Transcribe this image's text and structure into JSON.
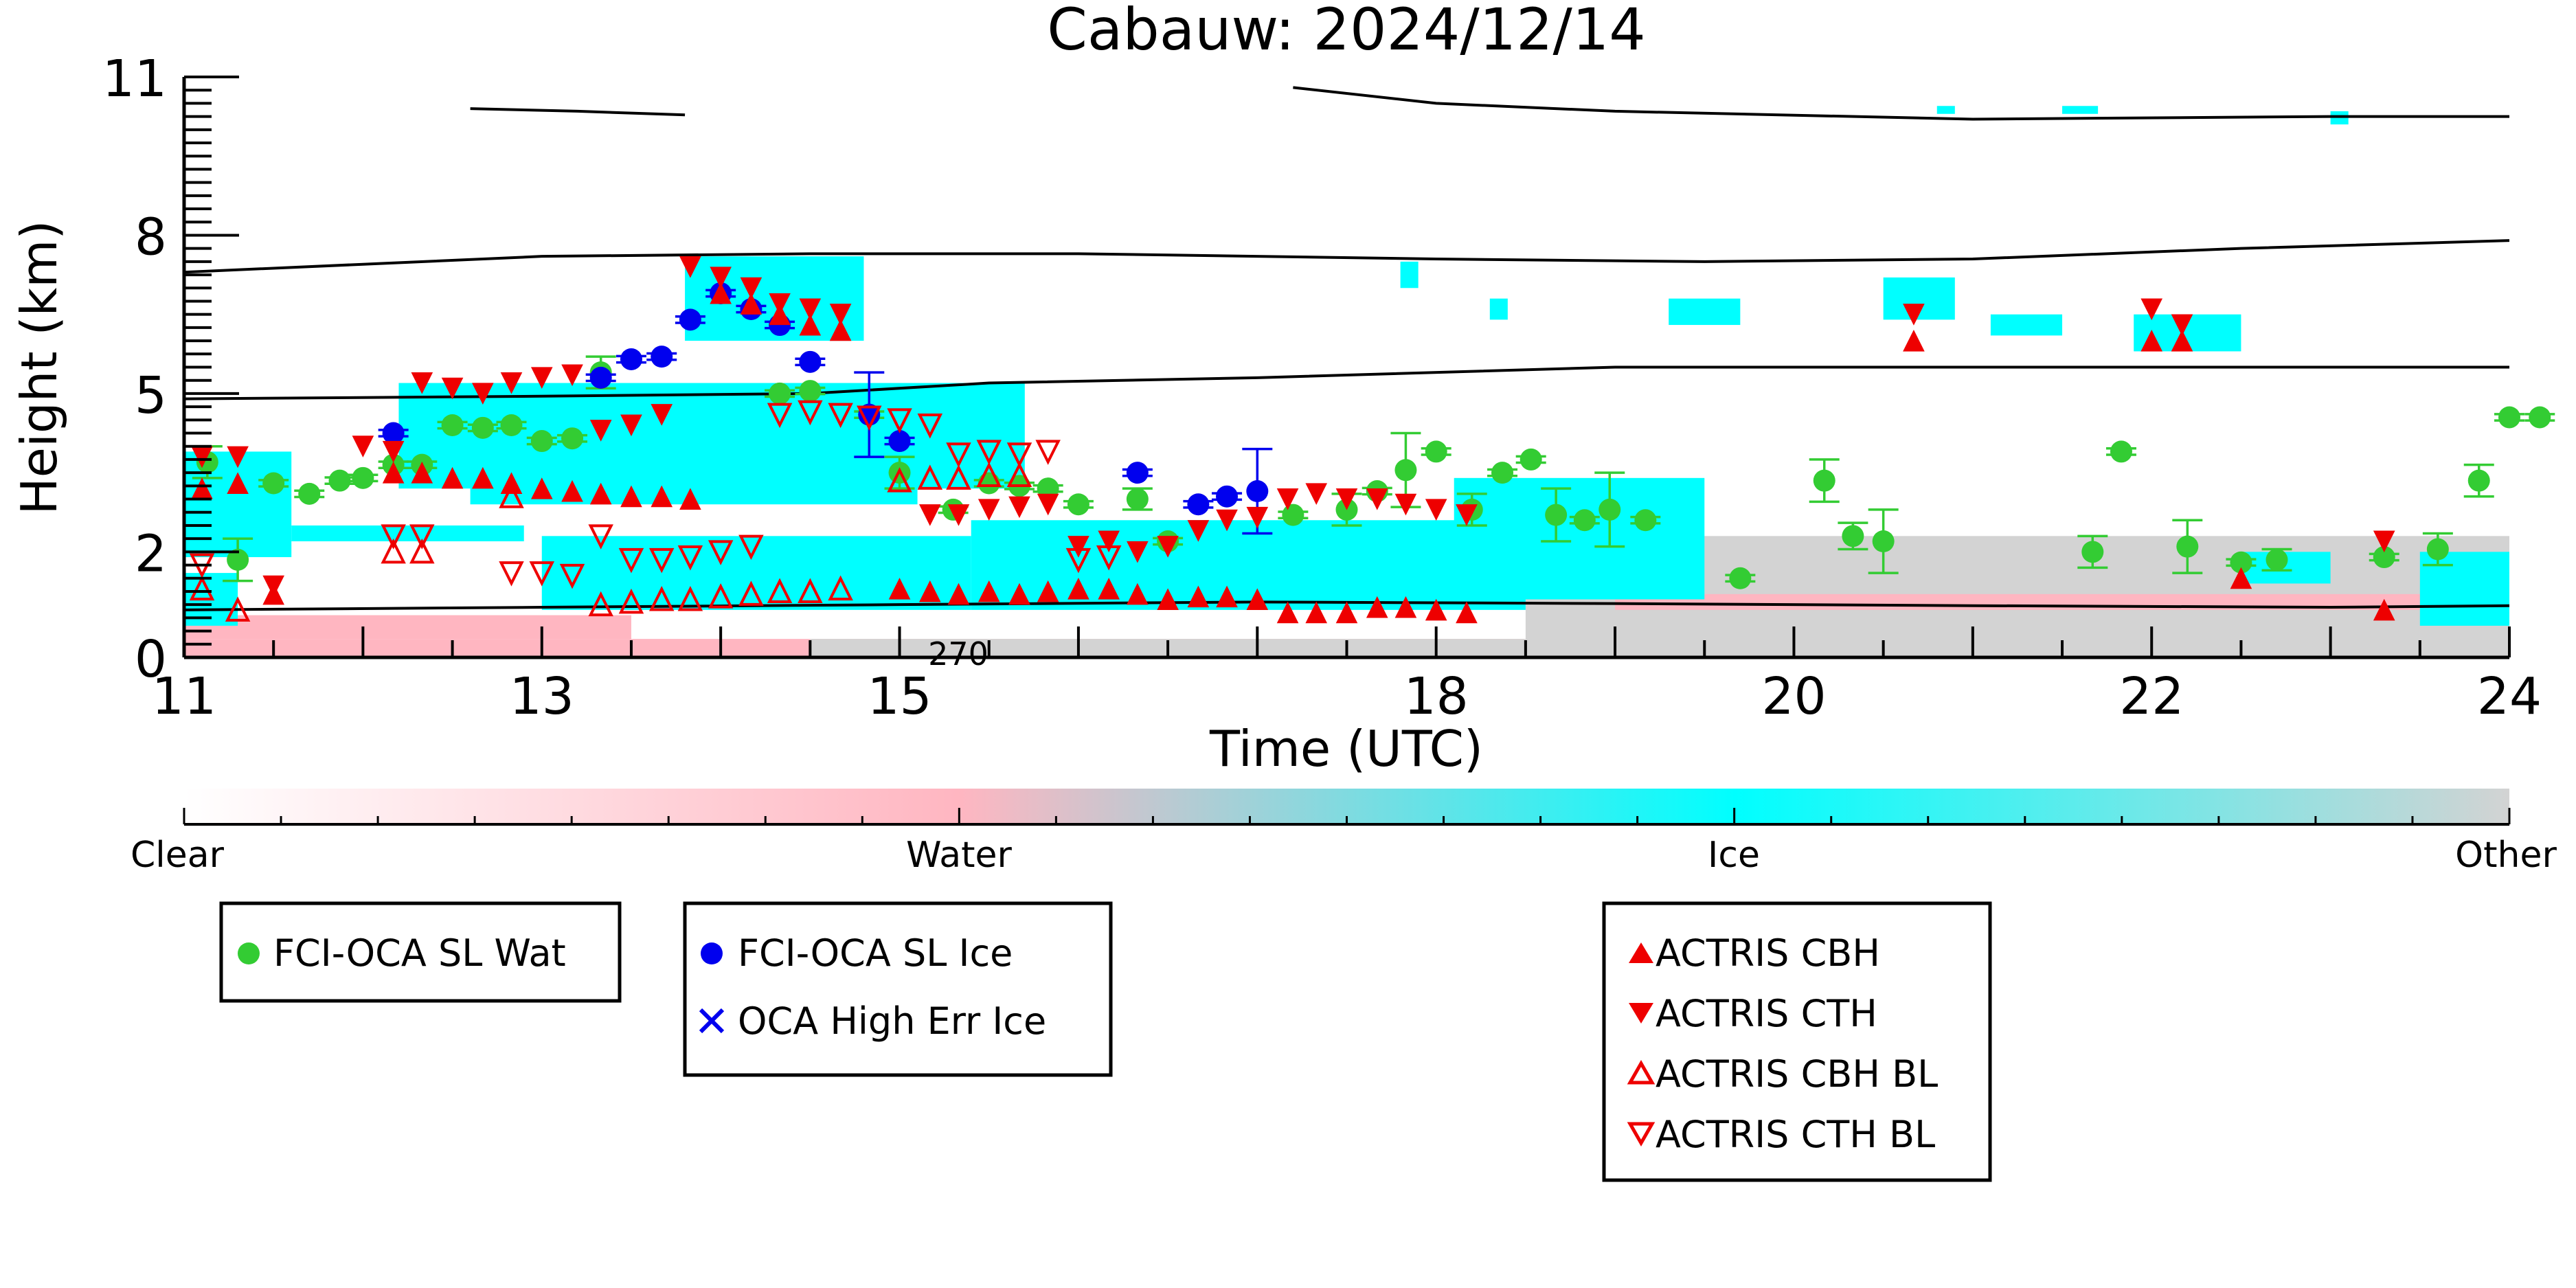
{
  "chart_data": {
    "type": "scatter",
    "title": "Cabauw: 2024/12/14",
    "xlabel": "Time (UTC)",
    "ylabel": "Height (km)",
    "xlim": [
      11,
      24
    ],
    "ylim": [
      0,
      11
    ],
    "x_ticks": [
      11,
      13,
      15,
      18,
      20,
      22,
      24
    ],
    "y_ticks": [
      0,
      2,
      5,
      8,
      11
    ],
    "background_classes": {
      "labels": [
        "Clear",
        "Water",
        "Ice",
        "Other"
      ],
      "colors": [
        "#ffffff",
        "#ffb6c1",
        "#00ffff",
        "#d3d3d3"
      ]
    },
    "contour_label": "270",
    "contours": [
      [
        [
          11,
          0.9
        ],
        [
          13,
          0.95
        ],
        [
          15,
          1.0
        ],
        [
          17,
          1.05
        ],
        [
          19,
          1.02
        ],
        [
          21,
          0.98
        ],
        [
          23,
          0.95
        ],
        [
          24,
          0.98
        ]
      ],
      [
        [
          11,
          4.9
        ],
        [
          13,
          4.95
        ],
        [
          14.5,
          5.0
        ],
        [
          15.5,
          5.2
        ],
        [
          17,
          5.3
        ],
        [
          19,
          5.5
        ],
        [
          21,
          5.5
        ],
        [
          23,
          5.5
        ],
        [
          24,
          5.5
        ]
      ],
      [
        [
          11,
          7.3
        ],
        [
          12,
          7.45
        ],
        [
          13,
          7.6
        ],
        [
          14.5,
          7.65
        ],
        [
          16,
          7.65
        ],
        [
          18,
          7.55
        ],
        [
          19.5,
          7.5
        ],
        [
          21,
          7.55
        ],
        [
          22.5,
          7.75
        ],
        [
          24,
          7.9
        ]
      ],
      [
        [
          17.2,
          10.8
        ],
        [
          18,
          10.5
        ],
        [
          19,
          10.35
        ],
        [
          21,
          10.2
        ],
        [
          23,
          10.25
        ],
        [
          24,
          10.25
        ]
      ],
      [
        [
          12.6,
          10.4
        ],
        [
          13.2,
          10.35
        ],
        [
          13.8,
          10.28
        ]
      ]
    ],
    "series": [
      {
        "name": "FCI-OCA SL Wat",
        "marker": "circle",
        "color": "#33cc33",
        "points": [
          [
            11.13,
            3.7,
            0.3
          ],
          [
            11.3,
            1.85,
            0.4
          ],
          [
            11.5,
            3.3,
            0
          ],
          [
            11.7,
            3.1,
            0
          ],
          [
            11.87,
            3.35,
            0
          ],
          [
            12.0,
            3.4,
            0
          ],
          [
            12.17,
            3.65,
            0
          ],
          [
            12.33,
            3.65,
            0
          ],
          [
            12.5,
            4.4,
            0
          ],
          [
            12.67,
            4.35,
            0
          ],
          [
            12.83,
            4.4,
            0
          ],
          [
            13.0,
            4.1,
            0
          ],
          [
            13.17,
            4.15,
            0
          ],
          [
            13.33,
            5.4,
            0.3
          ],
          [
            14.33,
            5.0,
            0
          ],
          [
            14.5,
            5.05,
            0
          ],
          [
            14.83,
            4.6,
            0
          ],
          [
            15.0,
            3.5,
            0.3
          ],
          [
            15.3,
            2.8,
            0
          ],
          [
            15.5,
            3.3,
            0
          ],
          [
            15.67,
            3.25,
            0
          ],
          [
            15.83,
            3.2,
            0
          ],
          [
            16.0,
            2.9,
            0
          ],
          [
            16.33,
            3.0,
            0.2
          ],
          [
            16.5,
            2.2,
            0
          ],
          [
            17.2,
            2.7,
            0
          ],
          [
            17.5,
            2.8,
            0.3
          ],
          [
            17.67,
            3.15,
            0
          ],
          [
            17.83,
            3.55,
            0.7
          ],
          [
            18.0,
            3.9,
            0
          ],
          [
            18.2,
            2.8,
            0.3
          ],
          [
            18.37,
            3.5,
            0
          ],
          [
            18.53,
            3.75,
            0
          ],
          [
            18.67,
            2.7,
            0.5
          ],
          [
            18.83,
            2.6,
            0
          ],
          [
            18.97,
            2.8,
            0.7
          ],
          [
            19.17,
            2.6,
            0
          ],
          [
            19.7,
            1.5,
            0
          ],
          [
            20.17,
            3.35,
            0.4
          ],
          [
            20.33,
            2.3,
            0.25
          ],
          [
            20.5,
            2.2,
            0.6
          ],
          [
            21.67,
            2.0,
            0.3
          ],
          [
            21.83,
            3.9,
            0
          ],
          [
            22.2,
            2.1,
            0.5
          ],
          [
            22.5,
            1.8,
            0
          ],
          [
            22.7,
            1.85,
            0.2
          ],
          [
            23.3,
            1.9,
            0
          ],
          [
            23.6,
            2.05,
            0.3
          ],
          [
            23.83,
            3.35,
            0.3
          ],
          [
            24.0,
            4.55,
            0
          ],
          [
            24.17,
            4.55,
            0
          ]
        ]
      },
      {
        "name": "FCI-OCA SL Ice",
        "marker": "filled-circle",
        "color": "#0000ee",
        "points": [
          [
            12.17,
            4.25,
            0
          ],
          [
            13.33,
            5.3,
            0
          ],
          [
            13.5,
            5.65,
            0
          ],
          [
            13.67,
            5.7,
            0
          ],
          [
            13.83,
            6.4,
            0
          ],
          [
            14.0,
            6.9,
            0
          ],
          [
            14.17,
            6.6,
            0
          ],
          [
            14.33,
            6.3,
            0
          ],
          [
            14.5,
            5.6,
            0
          ],
          [
            14.83,
            4.6,
            0.8
          ],
          [
            15.0,
            4.1,
            0
          ],
          [
            16.33,
            3.5,
            0
          ],
          [
            16.67,
            2.9,
            0
          ],
          [
            16.83,
            3.05,
            0
          ],
          [
            17.0,
            3.15,
            0.8
          ]
        ]
      },
      {
        "name": "OCA High Err Ice",
        "marker": "x",
        "color": "#0000ee",
        "points": []
      },
      {
        "name": "ACTRIS CBH",
        "marker": "triangle-up",
        "color": "#ee0000",
        "points": [
          [
            11.1,
            3.2
          ],
          [
            11.3,
            3.3
          ],
          [
            11.5,
            1.2
          ],
          [
            12.17,
            3.5
          ],
          [
            12.33,
            3.5
          ],
          [
            12.5,
            3.4
          ],
          [
            12.67,
            3.4
          ],
          [
            12.83,
            3.3
          ],
          [
            13.0,
            3.2
          ],
          [
            13.17,
            3.15
          ],
          [
            13.33,
            3.1
          ],
          [
            13.5,
            3.05
          ],
          [
            13.67,
            3.05
          ],
          [
            13.83,
            3.0
          ],
          [
            14.0,
            6.9
          ],
          [
            14.17,
            6.7
          ],
          [
            14.33,
            6.5
          ],
          [
            14.5,
            6.3
          ],
          [
            14.67,
            6.2
          ],
          [
            15.0,
            1.3
          ],
          [
            15.17,
            1.25
          ],
          [
            15.33,
            1.2
          ],
          [
            15.5,
            1.25
          ],
          [
            15.67,
            1.2
          ],
          [
            15.83,
            1.25
          ],
          [
            16.0,
            1.3
          ],
          [
            16.17,
            1.3
          ],
          [
            16.33,
            1.2
          ],
          [
            16.5,
            1.1
          ],
          [
            16.67,
            1.15
          ],
          [
            16.83,
            1.15
          ],
          [
            17.0,
            1.1
          ],
          [
            17.17,
            0.85
          ],
          [
            17.33,
            0.85
          ],
          [
            17.5,
            0.85
          ],
          [
            17.67,
            0.95
          ],
          [
            17.83,
            0.95
          ],
          [
            18.0,
            0.9
          ],
          [
            18.17,
            0.85
          ],
          [
            20.67,
            6.0
          ],
          [
            22.0,
            6.0
          ],
          [
            22.17,
            6.0
          ],
          [
            22.5,
            1.5
          ],
          [
            23.3,
            0.9
          ]
        ]
      },
      {
        "name": "ACTRIS CTH",
        "marker": "triangle-down",
        "color": "#ee0000",
        "points": [
          [
            11.1,
            3.8
          ],
          [
            11.3,
            3.8
          ],
          [
            11.5,
            1.35
          ],
          [
            12.0,
            4.0
          ],
          [
            12.17,
            3.9
          ],
          [
            12.33,
            5.2
          ],
          [
            12.5,
            5.1
          ],
          [
            12.67,
            5.0
          ],
          [
            12.83,
            5.2
          ],
          [
            13.0,
            5.3
          ],
          [
            13.17,
            5.35
          ],
          [
            13.33,
            4.3
          ],
          [
            13.5,
            4.4
          ],
          [
            13.67,
            4.6
          ],
          [
            13.83,
            7.4
          ],
          [
            14.0,
            7.2
          ],
          [
            14.17,
            7.0
          ],
          [
            14.33,
            6.7
          ],
          [
            14.5,
            6.6
          ],
          [
            14.67,
            6.5
          ],
          [
            15.17,
            2.7
          ],
          [
            15.33,
            2.7
          ],
          [
            15.5,
            2.8
          ],
          [
            15.67,
            2.85
          ],
          [
            15.83,
            2.9
          ],
          [
            16.0,
            2.1
          ],
          [
            16.17,
            2.2
          ],
          [
            16.33,
            2.0
          ],
          [
            16.5,
            2.1
          ],
          [
            16.67,
            2.4
          ],
          [
            16.83,
            2.6
          ],
          [
            17.0,
            2.65
          ],
          [
            17.17,
            3.0
          ],
          [
            17.33,
            3.1
          ],
          [
            17.5,
            3.0
          ],
          [
            17.67,
            3.0
          ],
          [
            17.83,
            2.9
          ],
          [
            18.0,
            2.8
          ],
          [
            18.17,
            2.7
          ],
          [
            20.67,
            6.5
          ],
          [
            22.0,
            6.6
          ],
          [
            22.17,
            6.3
          ],
          [
            23.3,
            2.2
          ]
        ]
      },
      {
        "name": "ACTRIS CBH BL",
        "marker": "triangle-up-open",
        "color": "#ee0000",
        "points": [
          [
            11.1,
            1.3
          ],
          [
            11.3,
            0.9
          ],
          [
            12.17,
            2.0
          ],
          [
            12.33,
            2.0
          ],
          [
            12.83,
            3.05
          ],
          [
            13.33,
            1.0
          ],
          [
            13.5,
            1.05
          ],
          [
            13.67,
            1.1
          ],
          [
            13.83,
            1.1
          ],
          [
            14.0,
            1.15
          ],
          [
            14.17,
            1.2
          ],
          [
            14.33,
            1.25
          ],
          [
            14.5,
            1.25
          ],
          [
            14.67,
            1.3
          ],
          [
            15.0,
            3.35
          ],
          [
            15.17,
            3.4
          ],
          [
            15.33,
            3.4
          ],
          [
            15.5,
            3.45
          ],
          [
            15.67,
            3.45
          ]
        ]
      },
      {
        "name": "ACTRIS CTH BL",
        "marker": "triangle-down-open",
        "color": "#ee0000",
        "points": [
          [
            11.1,
            1.75
          ],
          [
            12.17,
            2.3
          ],
          [
            12.33,
            2.3
          ],
          [
            12.83,
            1.6
          ],
          [
            13.0,
            1.6
          ],
          [
            13.17,
            1.55
          ],
          [
            13.33,
            2.3
          ],
          [
            13.5,
            1.85
          ],
          [
            13.67,
            1.85
          ],
          [
            13.83,
            1.9
          ],
          [
            14.0,
            2.0
          ],
          [
            14.17,
            2.1
          ],
          [
            14.33,
            4.6
          ],
          [
            14.5,
            4.65
          ],
          [
            14.67,
            4.6
          ],
          [
            14.83,
            4.55
          ],
          [
            15.0,
            4.5
          ],
          [
            15.17,
            4.4
          ],
          [
            15.33,
            3.85
          ],
          [
            15.5,
            3.9
          ],
          [
            15.67,
            3.85
          ],
          [
            15.83,
            3.9
          ],
          [
            16.0,
            1.85
          ],
          [
            16.17,
            1.9
          ]
        ]
      }
    ],
    "legend_groups": [
      [
        "FCI-OCA SL Wat"
      ],
      [
        "FCI-OCA SL Ice",
        "OCA High Err Ice"
      ],
      [
        "ACTRIS CBH",
        "ACTRIS CTH",
        "ACTRIS CBH BL",
        "ACTRIS CTH BL"
      ]
    ]
  }
}
